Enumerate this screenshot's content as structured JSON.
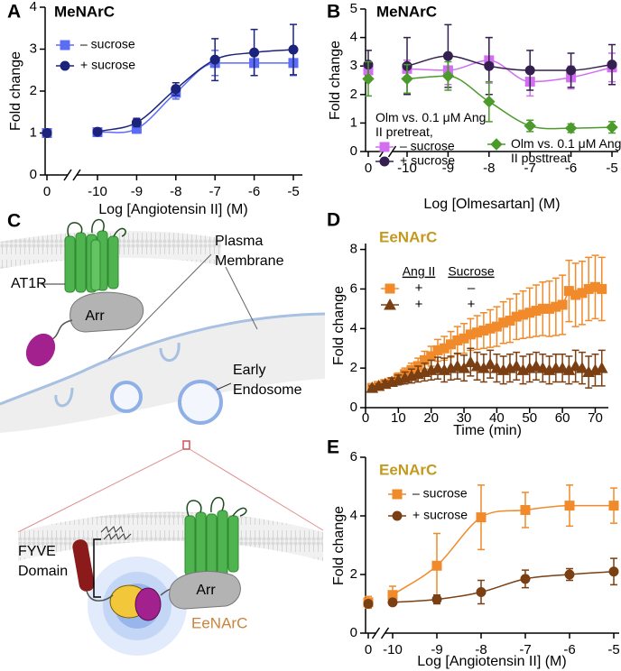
{
  "chart_data": [
    {
      "panel": "A",
      "type": "line",
      "smooth": true,
      "title": "MeNArC",
      "title_color": "#000000",
      "x_label": "Log [Angiotensin II] (M)",
      "y_label": "Fold change",
      "categories": [
        "0",
        "-10",
        "-9",
        "-8",
        "-7",
        "-6",
        "-5"
      ],
      "axis_break": true,
      "ylim": [
        0,
        4
      ],
      "yticks": [
        0,
        1,
        2,
        3,
        4
      ],
      "legend": "upper left",
      "series": [
        {
          "name": "– sucrose",
          "color": "#5b6cf5",
          "marker": "square",
          "values": [
            1.0,
            1.02,
            1.1,
            1.96,
            2.67,
            2.67,
            2.67
          ],
          "errors": [
            0.05,
            0.05,
            0.1,
            0.15,
            0.3,
            0.3,
            0.3
          ]
        },
        {
          "name": "+ sucrose",
          "color": "#1c237a",
          "marker": "circle",
          "values": [
            1.0,
            1.03,
            1.25,
            2.05,
            2.75,
            2.92,
            2.99
          ],
          "errors": [
            0.05,
            0.05,
            0.1,
            0.15,
            0.5,
            0.55,
            0.6
          ]
        }
      ]
    },
    {
      "panel": "B",
      "type": "line",
      "smooth": true,
      "title": "MeNArC",
      "title_color": "#000000",
      "x_label": "Log [Olmesartan] (M)",
      "y_label": "Fold change",
      "categories": [
        "0",
        "-10",
        "-9",
        "-8",
        "-7",
        "-6",
        "-5"
      ],
      "axis_break": true,
      "ylim": [
        0,
        5
      ],
      "yticks": [
        0,
        1,
        2,
        3,
        4,
        5
      ],
      "legend": "lower left",
      "legend_title": "Olm vs. 0.1 μM Ang II pretreat,",
      "series": [
        {
          "name": "– sucrose",
          "color": "#d26ff0",
          "marker": "square",
          "values": [
            2.85,
            2.9,
            2.85,
            3.2,
            2.45,
            2.6,
            2.95
          ],
          "errors": [
            0.3,
            0.3,
            0.5,
            0.8,
            0.5,
            0.4,
            0.5
          ]
        },
        {
          "name": "+ sucrose",
          "color": "#33204f",
          "marker": "circle",
          "values": [
            3.05,
            3.0,
            3.35,
            3.0,
            2.85,
            2.85,
            3.05
          ],
          "errors": [
            0.5,
            1.0,
            1.1,
            1.0,
            0.7,
            0.6,
            0.7
          ]
        },
        {
          "name": "Olm vs. 0.1 μM Ang II posttreat",
          "color": "#4b9a2b",
          "marker": "diamond",
          "values": [
            2.55,
            2.55,
            2.65,
            1.75,
            0.9,
            0.82,
            0.85
          ],
          "errors": [
            0.6,
            0.5,
            0.5,
            0.7,
            0.2,
            0.15,
            0.2
          ]
        }
      ]
    },
    {
      "panel": "D",
      "type": "line",
      "smooth": false,
      "title": "EeNArC",
      "title_color": "#c29a1e",
      "x_label": "Time (min)",
      "y_label": "Fold change",
      "x": [
        2,
        4,
        6,
        8,
        10,
        12,
        14,
        16,
        18,
        20,
        22,
        24,
        26,
        28,
        30,
        32,
        34,
        36,
        38,
        40,
        42,
        44,
        46,
        48,
        50,
        52,
        54,
        56,
        58,
        60,
        62,
        64,
        66,
        68,
        70,
        72
      ],
      "xlim": [
        0,
        74
      ],
      "xticks": [
        0,
        10,
        20,
        30,
        40,
        50,
        60,
        70
      ],
      "ylim": [
        0,
        8.3
      ],
      "yticks": [
        0,
        2,
        4,
        6,
        8
      ],
      "legend": "upper left",
      "legend_columns": [
        "Ang II",
        "Sucrose"
      ],
      "series": [
        {
          "legend_cells": [
            "+",
            "–"
          ],
          "color": "#f08a2a",
          "marker": "square",
          "values": [
            1.0,
            1.1,
            1.2,
            1.3,
            1.5,
            1.7,
            1.9,
            2.1,
            2.4,
            2.6,
            2.9,
            3.0,
            3.2,
            3.4,
            3.5,
            3.7,
            3.8,
            3.9,
            4.0,
            4.1,
            4.3,
            4.4,
            4.6,
            4.7,
            4.8,
            4.9,
            5.0,
            5.0,
            5.1,
            5.2,
            5.9,
            5.7,
            5.8,
            6.0,
            6.1,
            6.0
          ],
          "errors": [
            0.1,
            0.1,
            0.15,
            0.2,
            0.25,
            0.3,
            0.35,
            0.4,
            0.45,
            0.5,
            0.55,
            0.6,
            0.65,
            0.7,
            0.75,
            0.8,
            0.85,
            0.9,
            0.95,
            1.0,
            1.05,
            1.1,
            1.15,
            1.2,
            1.25,
            1.3,
            1.35,
            1.4,
            1.45,
            1.5,
            1.55,
            1.6,
            1.6,
            1.6,
            1.6,
            1.6
          ]
        },
        {
          "legend_cells": [
            "+",
            "+"
          ],
          "color": "#7a3f12",
          "marker": "triangle",
          "values": [
            1.0,
            1.1,
            1.2,
            1.3,
            1.4,
            1.5,
            1.6,
            1.7,
            1.8,
            1.9,
            2.0,
            1.9,
            2.0,
            2.1,
            2.0,
            2.3,
            2.1,
            2.0,
            2.2,
            2.0,
            1.9,
            2.0,
            2.1,
            1.9,
            2.0,
            2.1,
            2.0,
            1.9,
            2.0,
            2.0,
            1.9,
            2.1,
            2.0,
            1.8,
            1.9,
            2.0
          ],
          "errors": [
            0.1,
            0.1,
            0.15,
            0.2,
            0.25,
            0.3,
            0.35,
            0.4,
            0.45,
            0.5,
            0.55,
            0.6,
            0.6,
            0.65,
            0.65,
            0.7,
            0.7,
            0.7,
            0.7,
            0.7,
            0.7,
            0.7,
            0.7,
            0.7,
            0.7,
            0.7,
            0.7,
            0.7,
            0.7,
            0.7,
            0.7,
            0.8,
            0.8,
            0.8,
            0.8,
            0.9
          ]
        }
      ]
    },
    {
      "panel": "E",
      "type": "line",
      "smooth": true,
      "title": "EeNArC",
      "title_color": "#c29a1e",
      "x_label": "Log [Angiotensin II] (M)",
      "y_label": "Fold change",
      "categories": [
        "0",
        "-10",
        "-9",
        "-8",
        "-7",
        "-6",
        "-5"
      ],
      "axis_break": true,
      "ylim": [
        0,
        6
      ],
      "yticks": [
        0,
        2,
        4,
        6
      ],
      "legend": "upper left",
      "series": [
        {
          "name": "– sucrose",
          "color": "#f08a2a",
          "marker": "square",
          "values": [
            1.05,
            1.3,
            2.3,
            3.95,
            4.2,
            4.35,
            4.35
          ],
          "errors": [
            0.2,
            0.3,
            1.1,
            1.1,
            0.6,
            0.7,
            0.6
          ]
        },
        {
          "name": "+ sucrose",
          "color": "#7a3f12",
          "marker": "circle",
          "values": [
            1.0,
            1.05,
            1.15,
            1.4,
            1.85,
            2.0,
            2.1
          ],
          "errors": [
            0.1,
            0.1,
            0.15,
            0.4,
            0.3,
            0.2,
            0.45
          ]
        }
      ]
    }
  ],
  "diagram": {
    "panel": "C",
    "labels": {
      "plasma_membrane": [
        "Plasma",
        "Membrane"
      ],
      "at1r": "AT1R",
      "arrestin_top": "Arr",
      "early_endosome": [
        "Early",
        "Endosome"
      ],
      "fyve_domain": [
        "FYVE",
        "Domain"
      ],
      "arrestin_bottom": "Arr",
      "eenarc": "EeNArC"
    }
  }
}
